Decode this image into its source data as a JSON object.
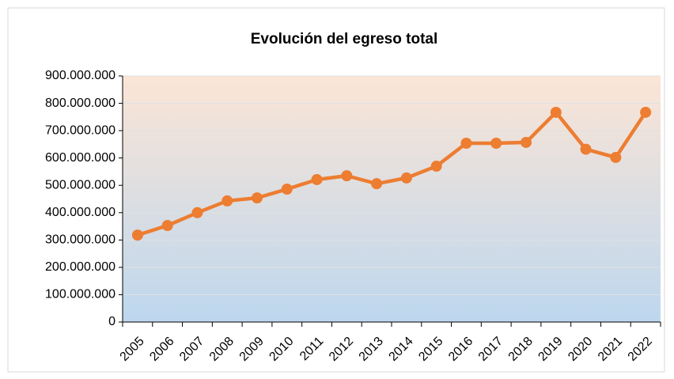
{
  "chart_data": {
    "type": "line",
    "title": "Evolución del egreso total",
    "categories": [
      "2005",
      "2006",
      "2007",
      "2008",
      "2009",
      "2010",
      "2011",
      "2012",
      "2013",
      "2014",
      "2015",
      "2016",
      "2017",
      "2018",
      "2019",
      "2020",
      "2021",
      "2022"
    ],
    "series": [
      {
        "name": "Egreso total",
        "color": "#ed7d31",
        "values": [
          318000000,
          353000000,
          400000000,
          443000000,
          454000000,
          486000000,
          521000000,
          535000000,
          506000000,
          527000000,
          570000000,
          654000000,
          654000000,
          657000000,
          767000000,
          632000000,
          602000000,
          767000000
        ]
      }
    ],
    "ylim": [
      0,
      900000000
    ],
    "yticks": [
      0,
      {
        "value": 100000000,
        "label": "100.000.000"
      },
      {
        "value": 200000000,
        "label": "200.000.000"
      },
      {
        "value": 300000000,
        "label": "300.000.000"
      },
      {
        "value": 400000000,
        "label": "400.000.000"
      },
      {
        "value": 500000000,
        "label": "500.000.000"
      },
      {
        "value": 600000000,
        "label": "600.000.000"
      },
      {
        "value": 700000000,
        "label": "700.000.000"
      },
      {
        "value": 800000000,
        "label": "800.000.000"
      },
      {
        "value": 900000000,
        "label": "900.000.000"
      }
    ],
    "grid": true
  }
}
